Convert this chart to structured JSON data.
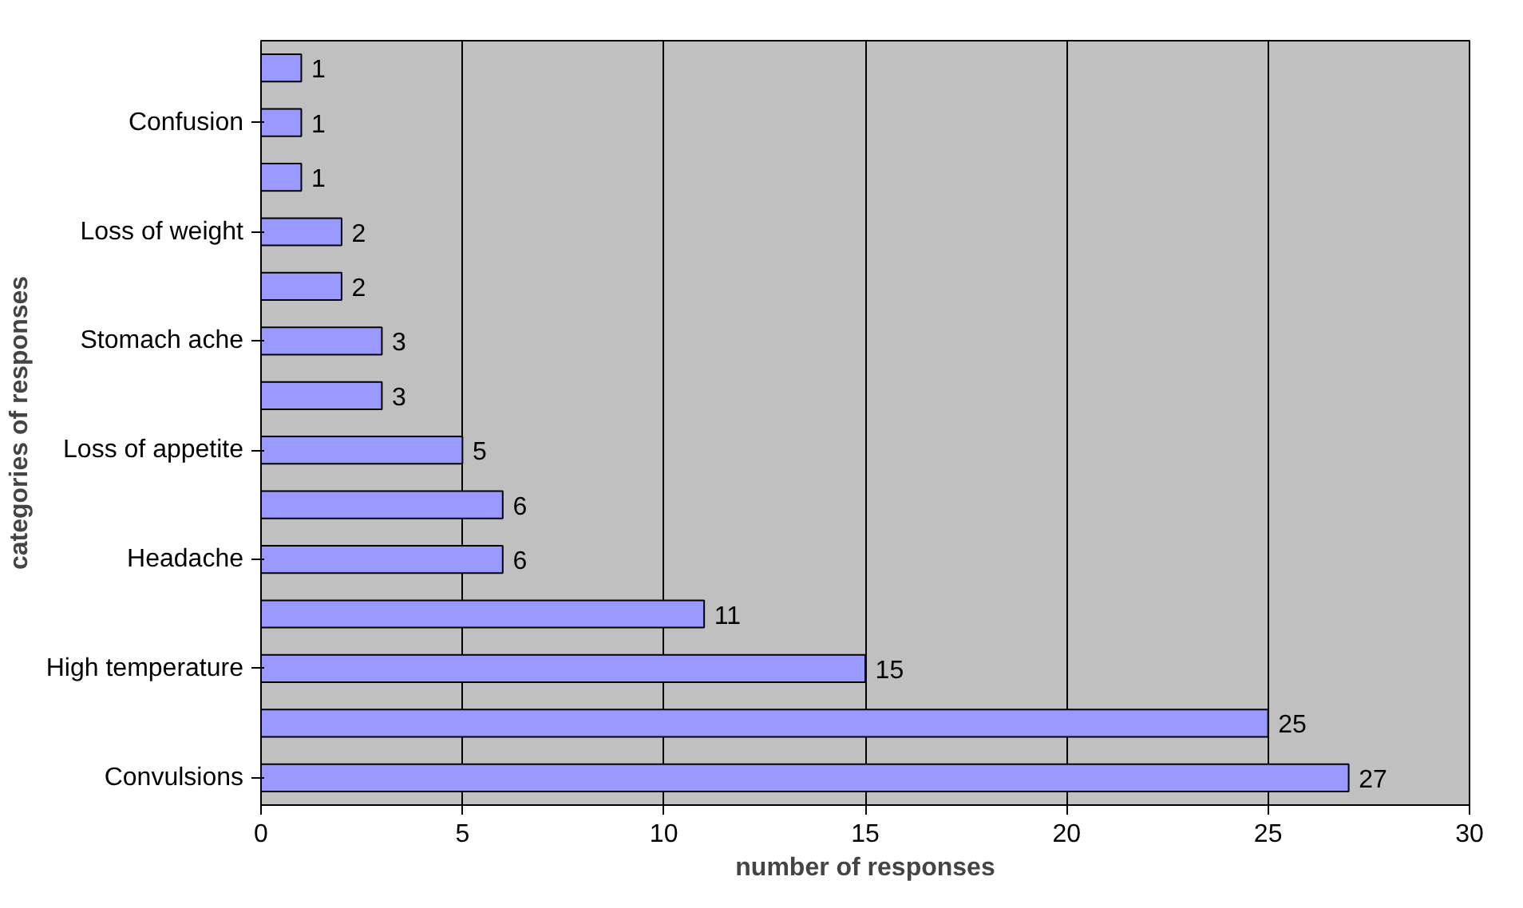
{
  "chart_data": {
    "type": "bar",
    "orientation": "horizontal",
    "xlabel": "number of responses",
    "ylabel": "categories of responses",
    "categories": [
      null,
      "Confusion",
      null,
      "Loss of weight",
      null,
      "Stomach ache",
      null,
      "Loss of appetite",
      null,
      "Headache",
      null,
      "High temperature",
      null,
      "Convulsions"
    ],
    "values": [
      1,
      1,
      1,
      2,
      2,
      3,
      3,
      5,
      6,
      6,
      11,
      15,
      25,
      27
    ],
    "color": "#9999ff",
    "xlim": [
      0,
      30
    ],
    "xticks": [
      0,
      5,
      10,
      15,
      20,
      25,
      30
    ],
    "grid": "x",
    "data_labels": true
  }
}
